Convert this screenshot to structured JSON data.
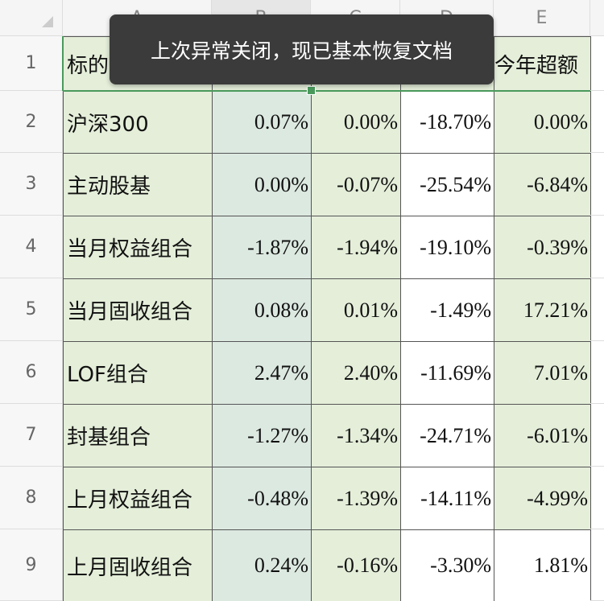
{
  "column_headers": [
    "A",
    "B",
    "C",
    "D",
    "E"
  ],
  "rows": [
    {
      "number": 1,
      "cells": [
        "标的",
        null,
        null,
        null,
        "今年超额"
      ]
    },
    {
      "number": 2,
      "cells": [
        "沪深300",
        "0.07%",
        "0.00%",
        "-18.70%",
        "0.00%"
      ]
    },
    {
      "number": 3,
      "cells": [
        "主动股基",
        "0.00%",
        "-0.07%",
        "-25.54%",
        "-6.84%"
      ]
    },
    {
      "number": 4,
      "cells": [
        "当月权益组合",
        "-1.87%",
        "-1.94%",
        "-19.10%",
        "-0.39%"
      ]
    },
    {
      "number": 5,
      "cells": [
        "当月固收组合",
        "0.08%",
        "0.01%",
        "-1.49%",
        "17.21%"
      ]
    },
    {
      "number": 6,
      "cells": [
        "LOF组合",
        "2.47%",
        "2.40%",
        "-11.69%",
        "7.01%"
      ]
    },
    {
      "number": 7,
      "cells": [
        "封基组合",
        "-1.27%",
        "-1.34%",
        "-24.71%",
        "-6.01%"
      ]
    },
    {
      "number": 8,
      "cells": [
        "上月权益组合",
        "-0.48%",
        "-1.39%",
        "-14.11%",
        "-4.99%"
      ]
    },
    {
      "number": 9,
      "cells": [
        "上月固收组合",
        "0.24%",
        "-0.16%",
        "-3.30%",
        "1.81%"
      ]
    }
  ],
  "toast": "上次异常关闭，现已基本恢复文档"
}
